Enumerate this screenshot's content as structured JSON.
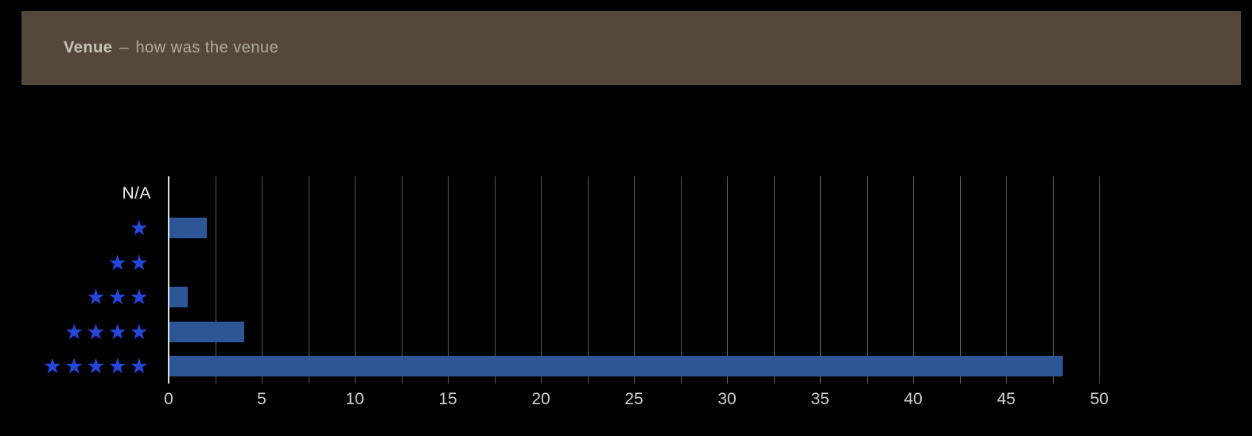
{
  "header": {
    "title": "Venue",
    "separator": "–",
    "subtitle": "how was the venue"
  },
  "colors": {
    "bg": "#000000",
    "header_bg": "#54483C",
    "title": "#C9C3B9",
    "subtitle": "#B2AB9F",
    "bar": "#2E5596",
    "star": "#2547D9",
    "grid": "#585858",
    "axis": "#DEDEDC",
    "tick_label": "#CFCFCF",
    "na_label": "#F0F0F0"
  },
  "chart_data": {
    "type": "bar",
    "orientation": "horizontal",
    "title": "Venue – how was the venue",
    "categories": [
      "N/A",
      "1 star",
      "2 stars",
      "3 stars",
      "4 stars",
      "5 stars"
    ],
    "values": [
      0,
      2,
      0,
      1,
      4,
      48
    ],
    "rows": [
      {
        "label": "N/A",
        "stars": 0,
        "value": 0
      },
      {
        "label": "1 star",
        "stars": 1,
        "value": 2
      },
      {
        "label": "2 stars",
        "stars": 2,
        "value": 0
      },
      {
        "label": "3 stars",
        "stars": 3,
        "value": 1
      },
      {
        "label": "4 stars",
        "stars": 4,
        "value": 4
      },
      {
        "label": "5 stars",
        "stars": 5,
        "value": 48
      }
    ],
    "xlim": [
      0,
      50
    ],
    "x_ticks": [
      0,
      5,
      10,
      15,
      20,
      25,
      30,
      35,
      40,
      45,
      50
    ],
    "grid_step": 2.5,
    "grid": true,
    "legend": false,
    "star_glyph": "★",
    "xlabel": "",
    "ylabel": ""
  }
}
